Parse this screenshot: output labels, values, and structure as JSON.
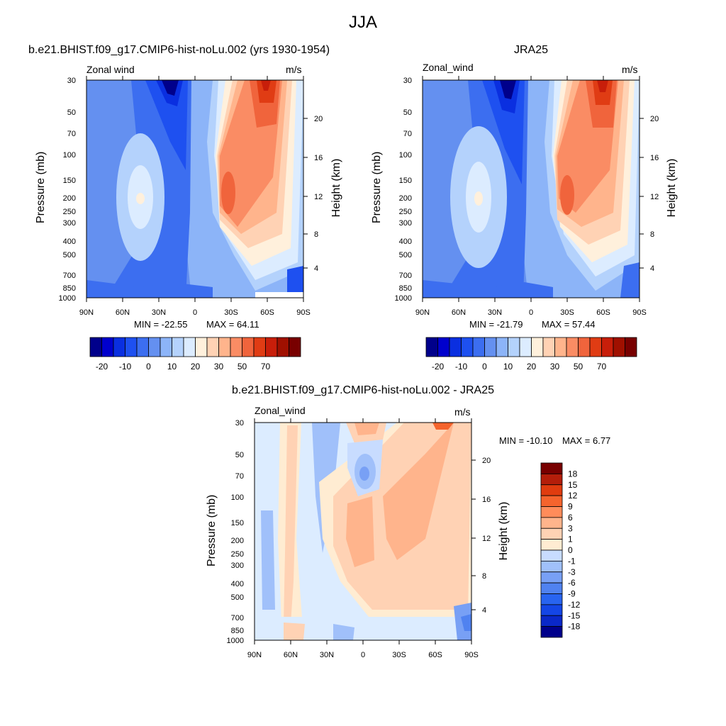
{
  "figure": {
    "title": "JJA"
  },
  "colors": {
    "model_obs_scale": [
      "#00008b",
      "#0000cd",
      "#0a2fe0",
      "#1e50f0",
      "#3c6ef0",
      "#6490f0",
      "#8cb4f8",
      "#b4d2fc",
      "#dcecff",
      "#fff0dc",
      "#ffd2b4",
      "#ffb48c",
      "#fa8c64",
      "#f0643c",
      "#e03c14",
      "#c81e0a",
      "#a01000",
      "#780000"
    ],
    "diff_scale": [
      "#00008b",
      "#0a28c8",
      "#1446e6",
      "#2864f0",
      "#5082f0",
      "#78a0f5",
      "#a0c0fa",
      "#c8dcff",
      "#ffecd2",
      "#ffd2b4",
      "#ffb48c",
      "#ff8c5a",
      "#f5642d",
      "#e03c0f",
      "#b41e0a",
      "#780000"
    ]
  },
  "panels": [
    {
      "id": "model",
      "title": "b.e21.BHIST.f09_g17.CMIP6-hist-noLu.002 (yrs 1930-1954)",
      "left_label": "Zonal wind",
      "right_label": "m/s",
      "ylabel": "Pressure (mb)",
      "ylabel_right": "Height (km)",
      "min_label": "MIN = -22.55",
      "max_label": "MAX =  64.11",
      "colorbar_labels": [
        "-20",
        "-10",
        "0",
        "10",
        "20",
        "30",
        "50",
        "70"
      ]
    },
    {
      "id": "obs",
      "title": "JRA25",
      "left_label": "Zonal_wind",
      "right_label": "m/s",
      "ylabel": "Pressure (mb)",
      "ylabel_right": "Height (km)",
      "min_label": "MIN = -21.79",
      "max_label": "MAX =  57.44",
      "colorbar_labels": [
        "-20",
        "-10",
        "0",
        "10",
        "20",
        "30",
        "50",
        "70"
      ]
    },
    {
      "id": "diff",
      "title": "b.e21.BHIST.f09_g17.CMIP6-hist-noLu.002 - JRA25",
      "left_label": "Zonal_wind",
      "right_label": "m/s",
      "ylabel": "Pressure (mb)",
      "ylabel_right": "Height (km)",
      "min_label": "MIN = -10.10",
      "max_label": "MAX =   6.77",
      "colorbar_labels": [
        "18",
        "15",
        "12",
        "9",
        "6",
        "3",
        "1",
        "0",
        "-1",
        "-3",
        "-6",
        "-9",
        "-12",
        "-15",
        "-18"
      ]
    }
  ],
  "chart_data": [
    {
      "type": "heatmap",
      "title": "b.e21.BHIST.f09_g17.CMIP6-hist-noLu.002 (yrs 1930-1954)",
      "variable": "Zonal wind",
      "units": "m/s",
      "xlabel": "",
      "ylabel": "Pressure (mb)",
      "ylabel_right": "Height (km)",
      "x_ticks": [
        "90N",
        "60N",
        "30N",
        "0",
        "30S",
        "60S",
        "90S"
      ],
      "y_ticks": [
        30,
        50,
        70,
        100,
        150,
        200,
        250,
        300,
        400,
        500,
        700,
        850,
        1000
      ],
      "y_ticks_right": [
        4,
        8,
        12,
        16,
        20
      ],
      "ylim": [
        1000,
        30
      ],
      "y_scale": "log",
      "min": -22.55,
      "max": 64.11,
      "levels": [
        -20,
        -10,
        0,
        10,
        20,
        30,
        50,
        70
      ]
    },
    {
      "type": "heatmap",
      "title": "JRA25",
      "variable": "Zonal_wind",
      "units": "m/s",
      "xlabel": "",
      "ylabel": "Pressure (mb)",
      "ylabel_right": "Height (km)",
      "x_ticks": [
        "90N",
        "60N",
        "30N",
        "0",
        "30S",
        "60S",
        "90S"
      ],
      "y_ticks": [
        30,
        50,
        70,
        100,
        150,
        200,
        250,
        300,
        400,
        500,
        700,
        850,
        1000
      ],
      "y_ticks_right": [
        4,
        8,
        12,
        16,
        20
      ],
      "ylim": [
        1000,
        30
      ],
      "y_scale": "log",
      "min": -21.79,
      "max": 57.44,
      "levels": [
        -20,
        -10,
        0,
        10,
        20,
        30,
        50,
        70
      ]
    },
    {
      "type": "heatmap",
      "title": "b.e21.BHIST.f09_g17.CMIP6-hist-noLu.002 - JRA25",
      "variable": "Zonal_wind",
      "units": "m/s",
      "xlabel": "",
      "ylabel": "Pressure (mb)",
      "ylabel_right": "Height (km)",
      "x_ticks": [
        "90N",
        "60N",
        "30N",
        "0",
        "30S",
        "60S",
        "90S"
      ],
      "y_ticks": [
        30,
        50,
        70,
        100,
        150,
        200,
        250,
        300,
        400,
        500,
        700,
        850,
        1000
      ],
      "y_ticks_right": [
        4,
        8,
        12,
        16,
        20
      ],
      "ylim": [
        1000,
        30
      ],
      "y_scale": "log",
      "min": -10.1,
      "max": 6.77,
      "levels": [
        -18,
        -15,
        -12,
        -9,
        -6,
        -3,
        -1,
        0,
        1,
        3,
        6,
        9,
        12,
        15,
        18
      ]
    }
  ]
}
